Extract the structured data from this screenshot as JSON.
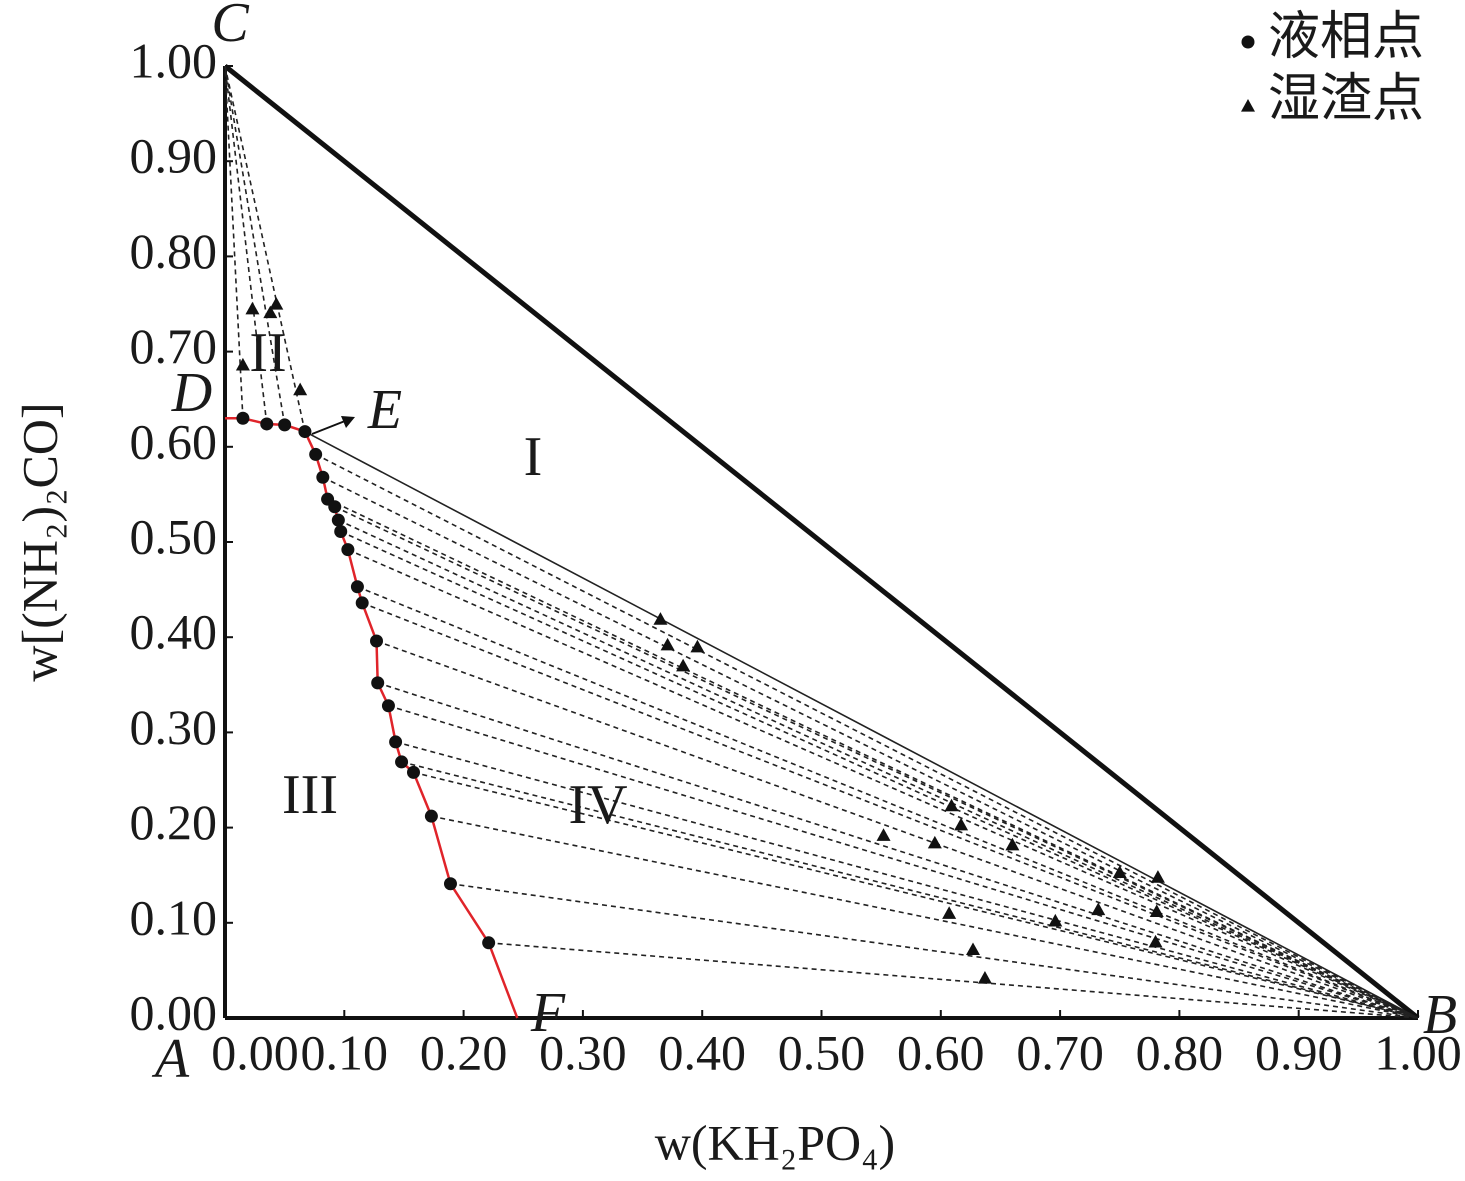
{
  "chart_data": {
    "type": "scatter",
    "x_label": "w(KH₂PO₄)",
    "y_label": "w[(NH₂)₂CO]",
    "xlim": [
      0,
      1
    ],
    "ylim": [
      0,
      1
    ],
    "xticks": [
      {
        "value": 0,
        "label": "0.00"
      },
      {
        "value": 0.1,
        "label": "0.10"
      },
      {
        "value": 0.2,
        "label": "0.20"
      },
      {
        "value": 0.3,
        "label": "0.30"
      },
      {
        "value": 0.4,
        "label": "0.40"
      },
      {
        "value": 0.5,
        "label": "0.50"
      },
      {
        "value": 0.6,
        "label": "0.60"
      },
      {
        "value": 0.7,
        "label": "0.70"
      },
      {
        "value": 0.8,
        "label": "0.80"
      },
      {
        "value": 0.9,
        "label": "0.90"
      },
      {
        "value": 1,
        "label": "1.00"
      }
    ],
    "yticks": [
      {
        "value": 0,
        "label": "0.00"
      },
      {
        "value": 0.1,
        "label": "0.10"
      },
      {
        "value": 0.2,
        "label": "0.20"
      },
      {
        "value": 0.3,
        "label": "0.30"
      },
      {
        "value": 0.4,
        "label": "0.40"
      },
      {
        "value": 0.5,
        "label": "0.50"
      },
      {
        "value": 0.6,
        "label": "0.60"
      },
      {
        "value": 0.7,
        "label": "0.70"
      },
      {
        "value": 0.8,
        "label": "0.80"
      },
      {
        "value": 0.9,
        "label": "0.90"
      },
      {
        "value": 1,
        "label": "1.00"
      }
    ],
    "legend": "top-right",
    "series": [
      {
        "name": "液相点",
        "color": "#111111",
        "marker": "circle",
        "x": [
          0.015,
          0.035,
          0.05,
          0.067,
          0.076,
          0.082,
          0.086,
          0.092,
          0.095,
          0.097,
          0.103,
          0.111,
          0.115,
          0.127,
          0.128,
          0.137,
          0.143,
          0.148,
          0.158,
          0.173,
          0.189,
          0.221
        ],
        "values": [
          0.63,
          0.624,
          0.623,
          0.616,
          0.592,
          0.568,
          0.545,
          0.537,
          0.523,
          0.511,
          0.492,
          0.453,
          0.436,
          0.396,
          0.352,
          0.328,
          0.29,
          0.269,
          0.258,
          0.212,
          0.141,
          0.079
        ]
      },
      {
        "name": "湿渣点",
        "color": "#111111",
        "marker": "triangle",
        "x": [
          0.023,
          0.038,
          0.043,
          0.015,
          0.063,
          0.365,
          0.371,
          0.396,
          0.384,
          0.609,
          0.617,
          0.552,
          0.595,
          0.66,
          0.75,
          0.782,
          0.781,
          0.607,
          0.696,
          0.732,
          0.78,
          0.627,
          0.637
        ],
        "values": [
          0.745,
          0.741,
          0.75,
          0.686,
          0.66,
          0.419,
          0.392,
          0.39,
          0.37,
          0.223,
          0.203,
          0.192,
          0.184,
          0.182,
          0.153,
          0.148,
          0.112,
          0.11,
          0.102,
          0.114,
          0.08,
          0.072,
          0.042
        ]
      }
    ],
    "curve": {
      "color": "#e0242a",
      "x": [
        0,
        0.015,
        0.035,
        0.05,
        0.067,
        0.076,
        0.082,
        0.086,
        0.092,
        0.097,
        0.103,
        0.111,
        0.115,
        0.127,
        0.128,
        0.137,
        0.143,
        0.148,
        0.158,
        0.173,
        0.189,
        0.221,
        0.245
      ],
      "y": [
        0.63,
        0.63,
        0.624,
        0.623,
        0.616,
        0.592,
        0.568,
        0.545,
        0.537,
        0.511,
        0.492,
        0.453,
        0.436,
        0.396,
        0.352,
        0.328,
        0.29,
        0.269,
        0.258,
        0.212,
        0.141,
        0.079,
        0
      ]
    },
    "annotations": [
      "A",
      "B",
      "C",
      "D",
      "E",
      "F",
      "I",
      "II",
      "III",
      "IV"
    ]
  }
}
